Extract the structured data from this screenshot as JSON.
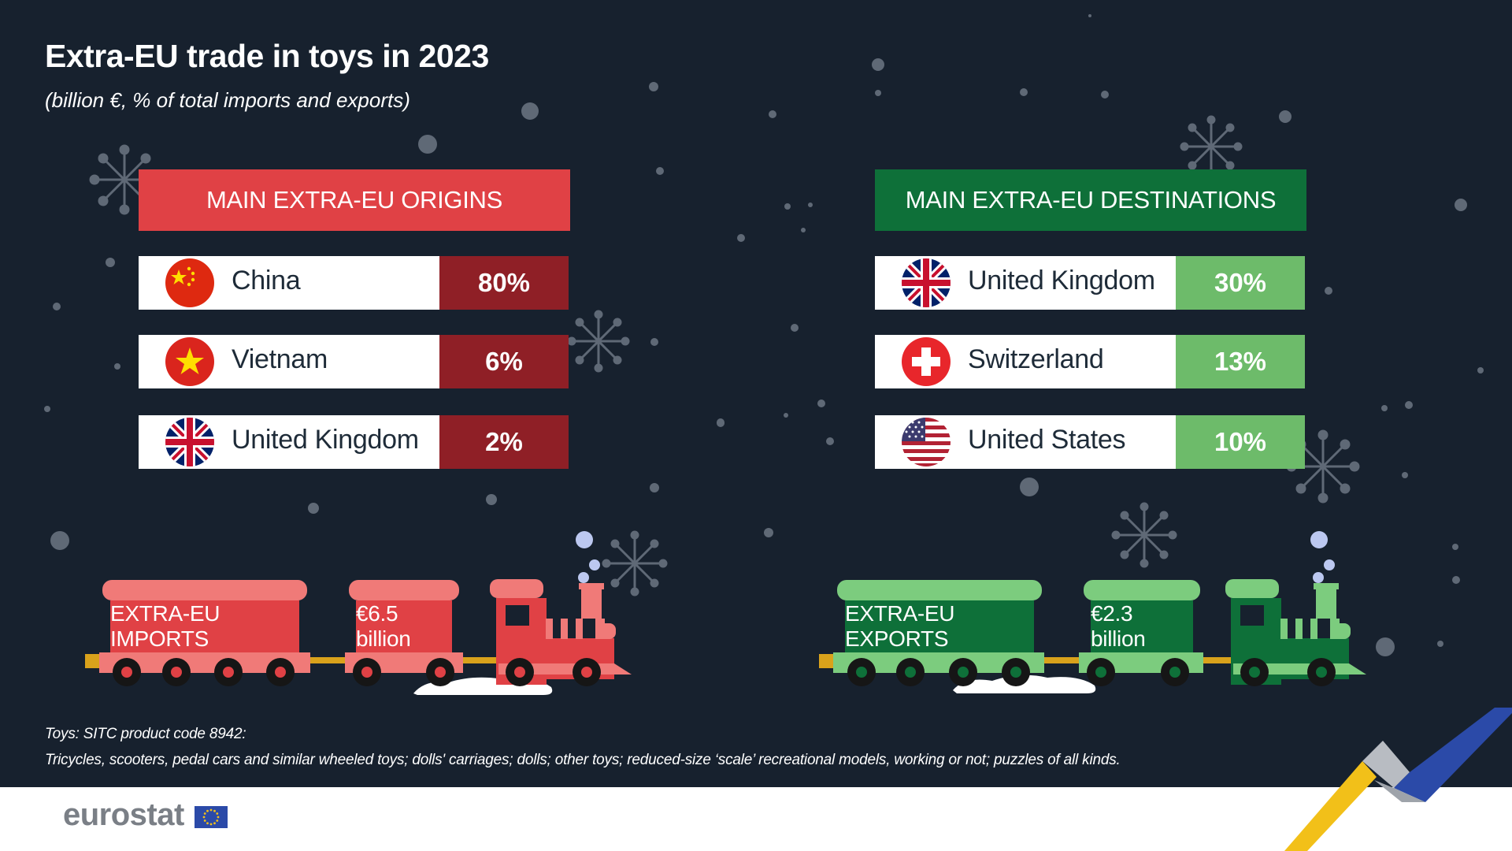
{
  "title": "Extra-EU trade in toys in 2023",
  "subtitle": "(billion €, % of total imports and exports)",
  "colors": {
    "background": "#17212e",
    "origins_header": "#e04145",
    "origins_pct": "#8f1f26",
    "destinations_header": "#0e7039",
    "destinations_pct": "#6dbb6a",
    "import_train": "#f07a78",
    "export_train": "#7ccc7e"
  },
  "chart_data": {
    "type": "table",
    "panels": [
      {
        "header": "MAIN EXTRA-EU ORIGINS",
        "rows": [
          {
            "country": "China",
            "flag": "china-flag-icon",
            "value": 80,
            "label": "80%"
          },
          {
            "country": "Vietnam",
            "flag": "vietnam-flag-icon",
            "value": 6,
            "label": "6%"
          },
          {
            "country": "United Kingdom",
            "flag": "uk-flag-icon",
            "value": 2,
            "label": "2%"
          }
        ],
        "train": {
          "label": "EXTRA-EU IMPORTS",
          "value": 6.5,
          "value_label": "€6.5 billion"
        }
      },
      {
        "header": "MAIN EXTRA-EU DESTINATIONS",
        "rows": [
          {
            "country": "United Kingdom",
            "flag": "uk-flag-icon",
            "value": 30,
            "label": "30%"
          },
          {
            "country": "Switzerland",
            "flag": "switzerland-flag-icon",
            "value": 13,
            "label": "13%"
          },
          {
            "country": "United States",
            "flag": "usa-flag-icon",
            "value": 10,
            "label": "10%"
          }
        ],
        "train": {
          "label": "EXTRA-EU EXPORTS",
          "value": 2.3,
          "value_label": "€2.3 billion"
        }
      }
    ]
  },
  "notes": {
    "line1": "Toys: SITC product code 8942:",
    "line2": "Tricycles, scooters, pedal cars and similar wheeled toys; dolls' carriages; dolls; other toys; reduced-size ‘scale’ recreational models, working or not; puzzles of all kinds."
  },
  "logo": {
    "text": "eurostat"
  }
}
